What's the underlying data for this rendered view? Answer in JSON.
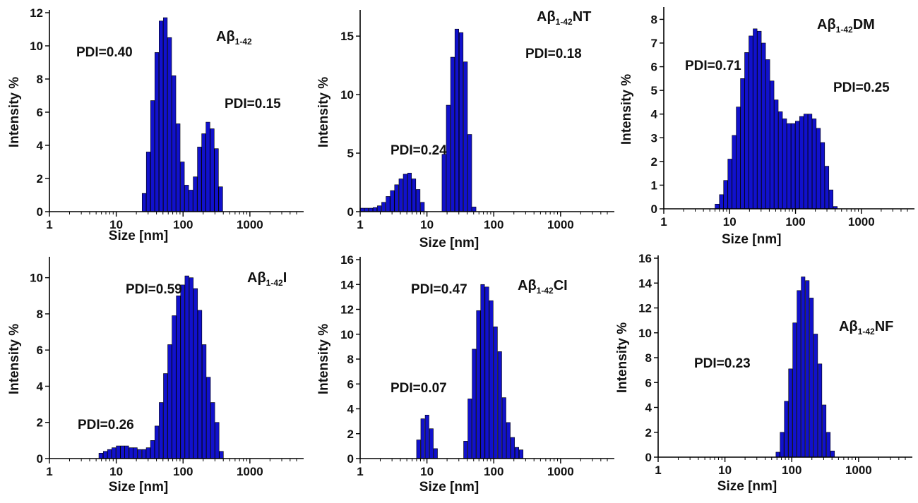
{
  "colors": {
    "bar_fill": "#1111cc",
    "bar_stroke": "#000000",
    "axis": "#000000",
    "background": "#ffffff"
  },
  "chart_data": [
    {
      "type": "bar",
      "title": {
        "main": "Aβ",
        "sub": "1-42",
        "suffix": ""
      },
      "xlabel": "Size [nm]",
      "ylabel": "Intensity %",
      "xscale": "log",
      "xlim": [
        1,
        5000
      ],
      "ylim": [
        0,
        12
      ],
      "yticks": [
        0,
        2,
        4,
        6,
        8,
        10,
        12
      ],
      "xticks": [
        1,
        10,
        100,
        1000
      ],
      "xtick_labels": [
        "1",
        "10",
        "100",
        "1000"
      ],
      "annotations": [
        "PDI=0.40",
        "PDI=0.15"
      ],
      "x": [
        21.0,
        24.4,
        28.2,
        32.7,
        37.8,
        43.8,
        50.7,
        58.8,
        68.1,
        78.8,
        91.3,
        105.7,
        122.4,
        141.8,
        164.2,
        190.1,
        220.2,
        255.0,
        295.3,
        342.0,
        396.1,
        458.7,
        531.2,
        615.1,
        712.4,
        825.0,
        955.4,
        1106.4,
        1281.3,
        1483.9
      ],
      "values": [
        0.0,
        1.1,
        3.6,
        6.7,
        9.6,
        11.5,
        11.7,
        10.5,
        8.2,
        5.3,
        3.0,
        1.6,
        1.3,
        2.1,
        3.9,
        4.7,
        5.4,
        5.0,
        3.8,
        1.5,
        0,
        0,
        0,
        0,
        0,
        0,
        0,
        0,
        0,
        0
      ]
    },
    {
      "type": "bar",
      "title": {
        "main": "Aβ",
        "sub": "1-42",
        "suffix": "NT"
      },
      "xlabel": "Size [nm]",
      "ylabel": "Intensity %",
      "xscale": "log",
      "xlim": [
        1,
        5000
      ],
      "ylim": [
        0,
        17
      ],
      "yticks": [
        0,
        5,
        10,
        15
      ],
      "xticks": [
        1,
        10,
        100,
        1000
      ],
      "xtick_labels": [
        "1",
        "10",
        "100",
        "1000"
      ],
      "annotations": [
        "PDI=0.24",
        "PDI=0.18"
      ],
      "x": [
        1.0,
        1.16,
        1.35,
        1.56,
        1.81,
        2.1,
        2.44,
        2.83,
        3.28,
        3.81,
        4.42,
        5.13,
        5.95,
        6.9,
        8.0,
        9.28,
        10.76,
        12.48,
        14.48,
        16.8,
        19.48,
        22.6,
        26.2,
        30.4,
        35.3,
        40.9,
        47.4,
        55.0,
        63.8,
        74.0,
        85.9,
        99.6,
        115.5,
        134.0,
        155.4,
        180.3,
        209.1,
        242.6,
        281.4
      ],
      "values": [
        0.3,
        0.3,
        0.3,
        0.35,
        0.5,
        0.8,
        1.3,
        1.8,
        2.3,
        2.8,
        3.2,
        3.3,
        2.8,
        1.9,
        0.8,
        0,
        0,
        0,
        0,
        4.9,
        9.1,
        13.2,
        15.6,
        15.3,
        12.8,
        6.6,
        0.4,
        0,
        0,
        0,
        0,
        0,
        0,
        0,
        0,
        0,
        0,
        0,
        0
      ]
    },
    {
      "type": "bar",
      "title": {
        "main": "Aβ",
        "sub": "1-42",
        "suffix": "DM"
      },
      "xlabel": "Size [nm]",
      "ylabel": "Intensity %",
      "xscale": "log",
      "xlim": [
        1,
        5000
      ],
      "ylim": [
        0,
        8.4
      ],
      "yticks": [
        0,
        1,
        2,
        3,
        4,
        5,
        6,
        7,
        8
      ],
      "xticks": [
        1,
        10,
        100,
        1000
      ],
      "xtick_labels": [
        "1",
        "10",
        "100",
        "1000"
      ],
      "annotations": [
        "PDI=0.71",
        "PDI=0.25"
      ],
      "x": [
        6.0,
        7.0,
        8.1,
        9.4,
        10.9,
        12.6,
        14.6,
        16.9,
        19.6,
        22.7,
        26.3,
        30.5,
        35.4,
        41.0,
        47.5,
        55.1,
        63.8,
        74.0,
        85.7,
        99.4,
        115.2,
        133.5,
        154.7,
        179.3,
        207.8,
        240.8,
        279.1,
        323.5,
        374.9,
        434.5,
        503.6,
        583.6,
        676.4,
        783.9,
        908.5,
        1052.9,
        1220.3,
        1414.3,
        1639.1,
        1899.7,
        2201.7,
        2551.7
      ],
      "values": [
        0.2,
        0.6,
        1.2,
        2.1,
        3.1,
        4.3,
        5.5,
        6.6,
        7.3,
        7.6,
        7.5,
        7.0,
        6.3,
        5.4,
        4.6,
        4.1,
        3.8,
        3.6,
        3.6,
        3.7,
        3.9,
        4.0,
        4.0,
        3.8,
        3.4,
        2.8,
        1.8,
        0.8,
        0.1,
        0,
        0,
        0,
        0,
        0,
        0,
        0,
        0,
        0,
        0,
        0,
        0,
        0
      ]
    },
    {
      "type": "bar",
      "title": {
        "main": "Aβ",
        "sub": "1-42",
        "suffix": "I"
      },
      "xlabel": "Size [nm]",
      "ylabel": "Intensity %",
      "xscale": "log",
      "xlim": [
        1,
        5000
      ],
      "ylim": [
        0,
        11
      ],
      "yticks": [
        0,
        2,
        4,
        6,
        8,
        10
      ],
      "xticks": [
        1,
        10,
        100,
        1000
      ],
      "xtick_labels": [
        "1",
        "10",
        "100",
        "1000"
      ],
      "annotations": [
        "PDI=0.26",
        "PDI=0.59"
      ],
      "x": [
        5.5,
        6.4,
        7.4,
        8.6,
        10.0,
        11.6,
        13.4,
        15.6,
        18.0,
        20.9,
        24.3,
        28.1,
        32.6,
        37.8,
        43.9,
        50.9,
        59.0,
        68.4,
        79.3,
        92.0,
        106.7,
        123.8,
        143.6,
        166.5,
        193.1,
        224.0,
        259.8,
        301.3,
        349.5,
        405.4,
        470.2,
        545.4,
        632.6,
        733.8,
        851.1,
        987.2,
        1145.1,
        1328.2,
        1540.6
      ],
      "values": [
        0.3,
        0.4,
        0.5,
        0.6,
        0.7,
        0.7,
        0.7,
        0.6,
        0.6,
        0.5,
        0.5,
        0.6,
        1.0,
        1.8,
        3.1,
        4.7,
        6.3,
        7.9,
        9.0,
        9.6,
        10.1,
        10.0,
        9.4,
        8.2,
        6.3,
        4.5,
        3.1,
        2.0,
        0.4,
        0,
        0,
        0,
        0,
        0,
        0,
        0,
        0,
        0,
        0
      ]
    },
    {
      "type": "bar",
      "title": {
        "main": "Aβ",
        "sub": "1-42",
        "suffix": "CI"
      },
      "xlabel": "Size [nm]",
      "ylabel": "Intensity %",
      "xscale": "log",
      "xlim": [
        1,
        5000
      ],
      "ylim": [
        0,
        16
      ],
      "yticks": [
        0,
        2,
        4,
        6,
        8,
        10,
        12,
        14,
        16
      ],
      "xticks": [
        1,
        10,
        100,
        1000
      ],
      "xtick_labels": [
        "1",
        "10",
        "100",
        "1000"
      ],
      "annotations": [
        "PDI=0.07",
        "PDI=0.47"
      ],
      "x": [
        7.0,
        8.1,
        9.4,
        10.9,
        12.6,
        14.6,
        16.9,
        19.6,
        22.7,
        26.3,
        30.5,
        35.4,
        41.0,
        47.5,
        55.1,
        63.8,
        74.0,
        85.7,
        99.4,
        115.2,
        133.5,
        154.7,
        179.3,
        207.8,
        240.8,
        279.1,
        323.5,
        374.9,
        434.5,
        503.6,
        583.6,
        676.4
      ],
      "values": [
        1.5,
        3.2,
        3.5,
        2.4,
        0.8,
        0,
        0,
        0,
        0,
        0,
        0,
        1.4,
        4.8,
        8.8,
        11.9,
        14.0,
        13.8,
        12.7,
        10.6,
        8.6,
        4.9,
        2.9,
        1.7,
        0.9,
        0.7,
        0,
        0,
        0,
        0,
        0,
        0,
        0
      ]
    },
    {
      "type": "bar",
      "title": {
        "main": "Aβ",
        "sub": "1-42",
        "suffix": "NF"
      },
      "xlabel": "Size [nm]",
      "ylabel": "Intensity %",
      "xscale": "log",
      "xlim": [
        1,
        5000
      ],
      "ylim": [
        0,
        16
      ],
      "yticks": [
        0,
        2,
        4,
        6,
        8,
        10,
        12,
        14,
        16
      ],
      "xticks": [
        1,
        10,
        100,
        1000
      ],
      "xtick_labels": [
        "1",
        "10",
        "100",
        "1000"
      ],
      "annotations": [
        "PDI=0.23"
      ],
      "x": [
        58.0,
        67.0,
        77.5,
        89.6,
        103.6,
        119.8,
        138.5,
        160.2,
        185.2,
        214.2,
        247.7,
        286.4,
        331.2,
        383.0,
        442.9,
        512.1,
        592.2,
        684.8,
        791.9,
        915.7
      ],
      "values": [
        0.4,
        2.0,
        4.5,
        7.1,
        10.8,
        13.4,
        14.5,
        14.2,
        12.8,
        9.9,
        7.5,
        4.2,
        2.0,
        0.5,
        0,
        0,
        0,
        0,
        0,
        0
      ]
    }
  ]
}
